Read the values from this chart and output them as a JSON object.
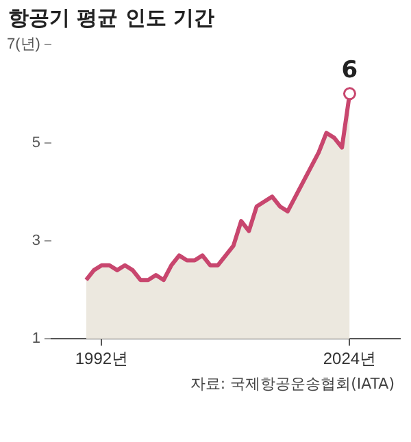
{
  "chart_data": {
    "type": "area",
    "title": "항공기 평균 인도 기간",
    "x": [
      1990,
      1991,
      1992,
      1993,
      1994,
      1995,
      1996,
      1997,
      1998,
      1999,
      2000,
      2001,
      2002,
      2003,
      2004,
      2005,
      2006,
      2007,
      2008,
      2009,
      2010,
      2011,
      2012,
      2013,
      2014,
      2015,
      2016,
      2017,
      2018,
      2019,
      2020,
      2021,
      2022,
      2023,
      2024
    ],
    "series": [
      {
        "color": "#c8466e",
        "values": [
          2.2,
          2.4,
          2.5,
          2.5,
          2.4,
          2.5,
          2.4,
          2.2,
          2.2,
          2.3,
          2.2,
          2.5,
          2.7,
          2.6,
          2.6,
          2.7,
          2.5,
          2.5,
          2.7,
          2.9,
          3.4,
          3.2,
          3.7,
          3.8,
          3.9,
          3.7,
          3.6,
          3.9,
          4.2,
          4.5,
          4.8,
          5.2,
          5.1,
          4.9,
          6
        ],
        "value_labels": [
          null,
          null,
          null,
          null,
          null,
          null,
          null,
          null,
          null,
          null,
          null,
          null,
          null,
          null,
          null,
          null,
          null,
          null,
          null,
          null,
          null,
          null,
          null,
          null,
          null,
          null,
          null,
          null,
          null,
          null,
          null,
          null,
          null,
          null,
          "6"
        ]
      }
    ],
    "xlim": [
      1985.5,
      2030.5
    ],
    "xticks": [
      {
        "value": 1992,
        "label": "1992년"
      },
      {
        "value": 2024,
        "label": "2024년"
      }
    ],
    "ylim": [
      1,
      7
    ],
    "yticks": [
      1,
      3,
      5,
      {
        "value": 7,
        "label": "7(년)"
      }
    ],
    "grid": false,
    "legend": false,
    "annotations": [
      "자료: 국제항공운송협회(IATA)"
    ]
  }
}
